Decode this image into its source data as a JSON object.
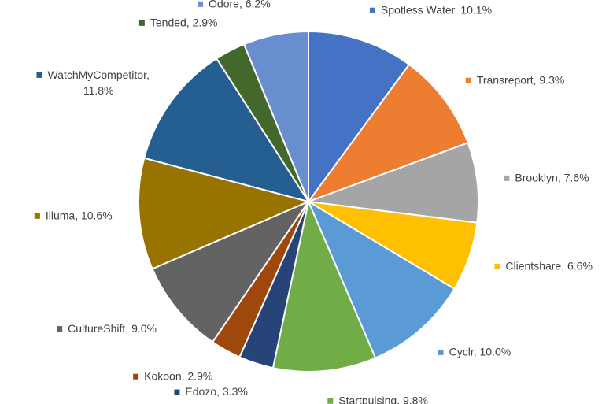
{
  "chart_data": {
    "type": "pie",
    "categories": [
      "Spotless Water",
      "Transreport",
      "Brooklyn",
      "Clientshare",
      "Cyclr",
      "Startpulsing",
      "Edozo",
      "Kokoon",
      "CultureShift",
      "Illuma",
      "WatchMyCompetitor",
      "Tended",
      "Odore"
    ],
    "values": [
      10.1,
      9.3,
      7.6,
      6.6,
      10.0,
      9.8,
      3.3,
      2.9,
      9.0,
      10.6,
      11.8,
      2.9,
      6.2
    ],
    "value_labels": [
      "Spotless Water, 10.1%",
      "Transreport, 9.3%",
      "Brooklyn, 7.6%",
      "Clientshare, 6.6%",
      "Cyclr, 10.0%",
      "Startpulsing, 9.8%",
      "Edozo, 3.3%",
      "Kokoon, 2.9%",
      "CultureShift, 9.0%",
      "Illuma, 10.6%",
      "WatchMyCompetitor, 11.8%",
      "Tended, 2.9%",
      "Odore, 6.2%"
    ],
    "colors": [
      "#4472c4",
      "#ed7d31",
      "#a5a5a5",
      "#ffc000",
      "#5b9bd5",
      "#70ad47",
      "#264478",
      "#9e480e",
      "#636363",
      "#997300",
      "#255e91",
      "#43682b",
      "#698ed0"
    ]
  }
}
